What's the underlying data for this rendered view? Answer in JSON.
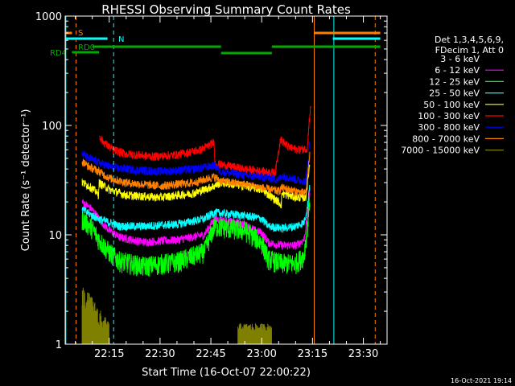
{
  "chart_data": {
    "type": "line",
    "title": "RHESSI Observing Summary Count Rates",
    "xlabel": "Start Time (16-Oct-07 22:00:22)",
    "ylabel": "Count Rate (s⁻¹ detector⁻¹)",
    "yscale": "log",
    "ylim": [
      1,
      1000
    ],
    "xlim_minutes": [
      2,
      40
    ],
    "x_ticks": [
      "22:15",
      "22:30",
      "22:45",
      "23:00",
      "23:15",
      "23:30"
    ],
    "x_tick_minutes": [
      15,
      30,
      45,
      60,
      75,
      90
    ],
    "y_ticks": [
      "1",
      "10",
      "100",
      "1000"
    ],
    "legend_header": [
      "Det 1,3,4,5,6,9,",
      "FDecim 1, Att 0"
    ],
    "legend_position": "right",
    "series": [
      {
        "name": "3 - 6 keV",
        "color": "#000000",
        "minutes": [
          7,
          10,
          12,
          15,
          18,
          25,
          35,
          43,
          46,
          55,
          58,
          60,
          62,
          66,
          70,
          72.5,
          73.5,
          74.2
        ],
        "values": [
          11,
          8,
          6,
          4.5,
          3.5,
          3.2,
          3.2,
          3.6,
          7,
          8,
          7,
          6.5,
          4.5,
          4,
          4,
          4.8,
          8,
          14
        ]
      },
      {
        "name": "6 - 12 keV",
        "color": "#ff00ff",
        "minutes": [
          7,
          10,
          12,
          15,
          18,
          25,
          35,
          43,
          46,
          55,
          58,
          60,
          62,
          66,
          70,
          72.5,
          73.5,
          74.2
        ],
        "values": [
          20,
          17,
          14,
          11,
          9.5,
          8.6,
          9,
          10,
          14,
          12.5,
          11,
          10.5,
          8.5,
          8,
          8,
          9,
          15,
          25
        ]
      },
      {
        "name": "12 - 25 keV",
        "color": "#00ff00",
        "minutes": [
          7,
          10,
          12,
          15,
          18,
          25,
          35,
          43,
          46,
          55,
          58,
          60,
          62,
          66,
          70,
          72.5,
          73.5,
          74.2
        ],
        "values": [
          14,
          11.5,
          9,
          7,
          5.8,
          5.2,
          5.7,
          7,
          12,
          11,
          9.5,
          8.5,
          6,
          5.5,
          5.5,
          6.5,
          12,
          22
        ]
      },
      {
        "name": "25 - 50 keV",
        "color": "#00ffff",
        "minutes": [
          7,
          10,
          12,
          15,
          18,
          25,
          35,
          43,
          46,
          55,
          58,
          60,
          62,
          66,
          70,
          72.5,
          73.5,
          74.2
        ],
        "values": [
          17,
          15,
          14,
          13,
          12,
          12,
          12.5,
          14,
          16,
          15,
          14.5,
          14,
          12,
          11.5,
          12,
          13,
          18,
          30
        ]
      },
      {
        "name": "50 - 100 keV",
        "color": "#ffff00",
        "minutes": [
          7,
          9,
          11,
          11.8,
          12,
          15,
          20,
          30,
          40,
          46,
          48,
          55,
          60,
          65,
          65.8,
          66,
          70,
          73,
          74.2
        ],
        "values": [
          30,
          28,
          25,
          23,
          30,
          26,
          23,
          22,
          24,
          28,
          30,
          28,
          26,
          20,
          19,
          24,
          22,
          22,
          45
        ]
      },
      {
        "name": "100 - 300 keV",
        "color": "#ff0000",
        "minutes": [
          12.2,
          13,
          16,
          20,
          28,
          35,
          42,
          46,
          46.2,
          55,
          60,
          64,
          65.5,
          68,
          71,
          73.5,
          74,
          74.5
        ],
        "values": [
          80,
          72,
          60,
          55,
          52,
          54,
          60,
          70,
          45,
          40,
          38,
          37,
          75,
          63,
          60,
          62,
          110,
          150
        ]
      },
      {
        "name": "300 - 800 keV",
        "color": "#0000ff",
        "minutes": [
          7,
          9,
          12,
          15,
          20,
          30,
          40,
          46,
          48,
          55,
          60,
          65,
          66,
          70,
          73,
          74.2
        ],
        "values": [
          55,
          50,
          46,
          42,
          40,
          38,
          40,
          43,
          38,
          35,
          34,
          32,
          35,
          32,
          31,
          70
        ]
      },
      {
        "name": "800 - 7000 keV",
        "color": "#ff8000",
        "minutes": [
          7,
          9,
          12,
          15,
          20,
          30,
          40,
          46,
          48,
          55,
          60,
          65,
          66,
          70,
          73,
          74.2
        ],
        "values": [
          47,
          42,
          38,
          33,
          30,
          28,
          30,
          34,
          31,
          29,
          27,
          25,
          27,
          25,
          24,
          55
        ]
      },
      {
        "name": "7000 - 15000 keV",
        "color": "#808000",
        "minutes": [
          7,
          9,
          10,
          12,
          13,
          14,
          15
        ],
        "values": [
          2.5,
          2.2,
          2.0,
          1.6,
          1.4,
          1.3,
          1.2
        ]
      }
    ],
    "status_bars": [
      {
        "label": "S",
        "color": "#ff8000",
        "segments": [
          [
            2,
            4
          ],
          [
            75.5,
            95
          ]
        ]
      },
      {
        "label": "N",
        "color": "#00ffff",
        "segments": [
          [
            2,
            14.5
          ],
          [
            81,
            95
          ]
        ]
      },
      {
        "label": "RD0",
        "color": "#00aa00",
        "segments": [
          [
            10,
            48
          ],
          [
            48,
            63
          ],
          [
            63,
            95
          ]
        ]
      },
      {
        "label": "RD4",
        "color": "#00aa00",
        "segments": [
          [
            4,
            12
          ]
        ]
      }
    ],
    "vertical_markers": [
      {
        "minute": 2.2,
        "color": "#00ffff"
      },
      {
        "minute": 5.2,
        "color": "#ff8000",
        "style": "dashed"
      },
      {
        "minute": 16.3,
        "color": "#00ffff",
        "style": "dashed"
      },
      {
        "minute": 75.5,
        "color": "#ff8000"
      },
      {
        "minute": 81.3,
        "color": "#00ffff"
      },
      {
        "minute": 93.5,
        "color": "#ff8000",
        "style": "dashed"
      }
    ]
  },
  "footer": {
    "timestamp": "16-Oct-2021 19:14"
  },
  "legend": {
    "header1": "Det 1,3,4,5,6,9,",
    "header2": "FDecim 1, Att 0"
  }
}
